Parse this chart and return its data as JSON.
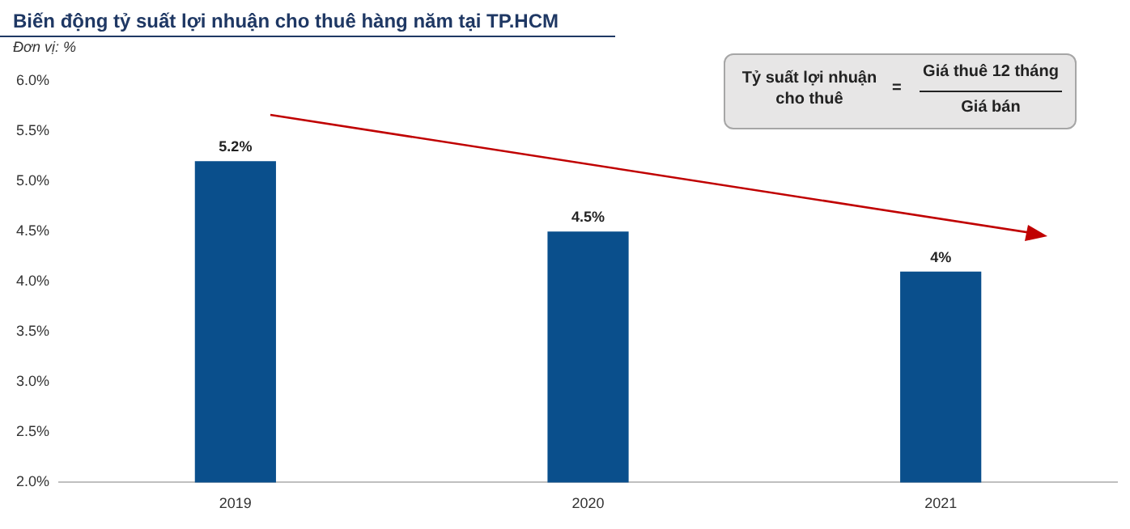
{
  "chart_data": {
    "type": "bar",
    "title": "Biến động tỷ suất lợi nhuận cho thuê hàng năm tại TP.HCM",
    "subtitle": "Đơn vị: %",
    "categories": [
      "2019",
      "2020",
      "2021"
    ],
    "values": [
      5.2,
      4.5,
      4.1
    ],
    "value_labels": [
      "5.2%",
      "4.5%",
      "4%"
    ],
    "color": "#0a4f8c",
    "ylim": [
      2,
      6
    ],
    "yticks": [
      {
        "value": 2,
        "label": "2.0%"
      },
      {
        "value": 2.5,
        "label": "2.5%"
      },
      {
        "value": 3,
        "label": "3.0%"
      },
      {
        "value": 3.5,
        "label": "3.5%"
      },
      {
        "value": 4,
        "label": "4.0%"
      },
      {
        "value": 4.5,
        "label": "4.5%"
      },
      {
        "value": 5,
        "label": "5.0%"
      },
      {
        "value": 5.5,
        "label": "5.5%"
      },
      {
        "value": 6,
        "label": "6.0%"
      }
    ],
    "annotations": [
      "Tỷ suất lợi nhuận cho thuê",
      "=",
      "Giá thuê 12 tháng",
      "Giá bán"
    ]
  }
}
